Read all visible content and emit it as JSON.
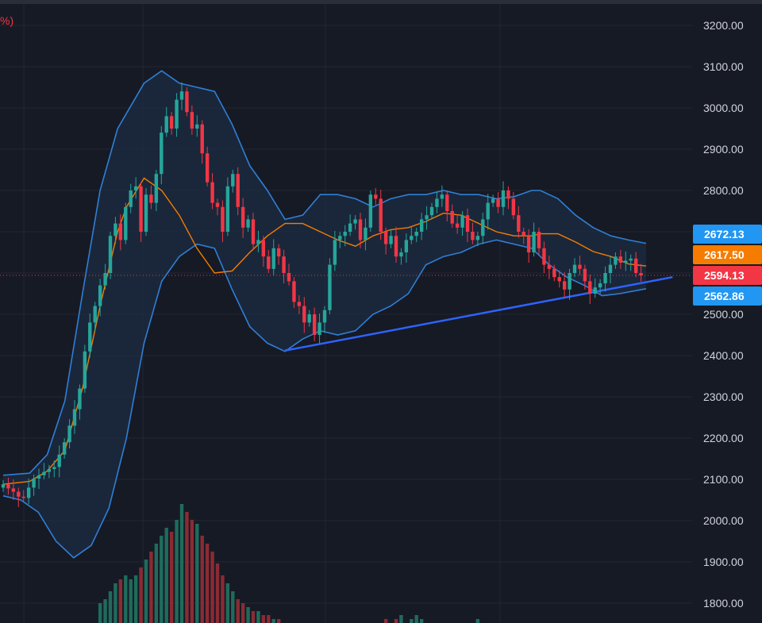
{
  "header": {
    "legend_fragment": "%)"
  },
  "colors": {
    "background": "#161a25",
    "grid": "#232733",
    "up": "#26a69a",
    "down": "#f23645",
    "bb_band": "#2f7fd6",
    "bb_fill": "#1c2a40",
    "bb_basis": "#f57c00",
    "trendline": "#2e63ff",
    "vol_up": "#1f6b5c",
    "vol_down": "#8a2b33",
    "axis_text": "#d1d4dc"
  },
  "chart_data": {
    "type": "candlestick",
    "ylim": [
      1780,
      3240
    ],
    "price_ticks": [
      "3200.00",
      "3100.00",
      "3000.00",
      "2900.00",
      "2800.00",
      "2700.00",
      "2600.00",
      "2500.00",
      "2400.00",
      "2300.00",
      "2200.00",
      "2100.00",
      "2000.00",
      "1900.00",
      "1800.00"
    ],
    "tags": [
      {
        "label": "2672.13",
        "value": 2672.13,
        "color": "#2196f3",
        "name": "upper-band-tag"
      },
      {
        "label": "2617.50",
        "value": 2617.5,
        "color": "#f57c00",
        "name": "basis-tag"
      },
      {
        "label": "2594.13",
        "value": 2594.13,
        "color": "#f23645",
        "name": "last-price-tag"
      },
      {
        "label": "2562.86",
        "value": 2562.86,
        "color": "#2196f3",
        "name": "lower-band-tag"
      }
    ],
    "last_price": 2594.13,
    "closes": [
      2088,
      2078,
      2070,
      2058,
      2055,
      2080,
      2102,
      2110,
      2118,
      2125,
      2130,
      2160,
      2190,
      2230,
      2270,
      2320,
      2410,
      2480,
      2520,
      2570,
      2600,
      2690,
      2720,
      2680,
      2760,
      2800,
      2810,
      2700,
      2790,
      2770,
      2840,
      2940,
      2980,
      2950,
      3020,
      3040,
      2990,
      2950,
      2960,
      2890,
      2820,
      2770,
      2760,
      2700,
      2810,
      2840,
      2760,
      2710,
      2730,
      2670,
      2680,
      2640,
      2610,
      2660,
      2640,
      2600,
      2580,
      2530,
      2520,
      2480,
      2500,
      2450,
      2480,
      2510,
      2620,
      2680,
      2690,
      2700,
      2720,
      2730,
      2680,
      2710,
      2790,
      2780,
      2700,
      2670,
      2690,
      2640,
      2650,
      2680,
      2690,
      2700,
      2730,
      2740,
      2760,
      2780,
      2790,
      2750,
      2720,
      2710,
      2740,
      2700,
      2680,
      2690,
      2730,
      2770,
      2780,
      2760,
      2800,
      2780,
      2740,
      2700,
      2690,
      2650,
      2700,
      2660,
      2620,
      2610,
      2590,
      2580,
      2560,
      2600,
      2620,
      2610,
      2580,
      2550,
      2565,
      2575,
      2600,
      2620,
      2640,
      2625,
      2630,
      2635,
      2600,
      2594
    ],
    "basis": [
      [
        0,
        2088
      ],
      [
        15,
        2095
      ],
      [
        25,
        2120
      ],
      [
        35,
        2170
      ],
      [
        45,
        2320
      ],
      [
        55,
        2520
      ],
      [
        65,
        2700
      ],
      [
        70,
        2760
      ],
      [
        80,
        2830
      ],
      [
        90,
        2800
      ],
      [
        100,
        2740
      ],
      [
        110,
        2660
      ],
      [
        120,
        2600
      ],
      [
        130,
        2605
      ],
      [
        140,
        2650
      ],
      [
        150,
        2690
      ],
      [
        160,
        2720
      ],
      [
        170,
        2720
      ],
      [
        180,
        2700
      ],
      [
        190,
        2680
      ],
      [
        200,
        2665
      ],
      [
        210,
        2690
      ],
      [
        220,
        2705
      ],
      [
        230,
        2710
      ],
      [
        240,
        2725
      ],
      [
        250,
        2745
      ],
      [
        260,
        2740
      ],
      [
        270,
        2720
      ],
      [
        280,
        2700
      ],
      [
        290,
        2690
      ],
      [
        300,
        2690
      ],
      [
        305,
        2695
      ],
      [
        315,
        2695
      ],
      [
        325,
        2675
      ],
      [
        335,
        2652
      ],
      [
        345,
        2640
      ],
      [
        355,
        2622
      ],
      [
        365,
        2617
      ]
    ],
    "upper": [
      [
        0,
        2110
      ],
      [
        15,
        2115
      ],
      [
        25,
        2160
      ],
      [
        35,
        2290
      ],
      [
        45,
        2550
      ],
      [
        55,
        2800
      ],
      [
        65,
        2950
      ],
      [
        80,
        3060
      ],
      [
        90,
        3090
      ],
      [
        100,
        3060
      ],
      [
        110,
        3050
      ],
      [
        120,
        3040
      ],
      [
        130,
        2960
      ],
      [
        140,
        2860
      ],
      [
        150,
        2800
      ],
      [
        160,
        2730
      ],
      [
        170,
        2740
      ],
      [
        180,
        2790
      ],
      [
        190,
        2790
      ],
      [
        200,
        2780
      ],
      [
        210,
        2760
      ],
      [
        220,
        2780
      ],
      [
        230,
        2790
      ],
      [
        240,
        2790
      ],
      [
        250,
        2800
      ],
      [
        260,
        2790
      ],
      [
        270,
        2790
      ],
      [
        280,
        2780
      ],
      [
        290,
        2785
      ],
      [
        300,
        2800
      ],
      [
        305,
        2800
      ],
      [
        315,
        2780
      ],
      [
        325,
        2740
      ],
      [
        335,
        2710
      ],
      [
        345,
        2690
      ],
      [
        355,
        2680
      ],
      [
        365,
        2672
      ]
    ],
    "lower": [
      [
        0,
        2060
      ],
      [
        10,
        2050
      ],
      [
        20,
        2020
      ],
      [
        30,
        1950
      ],
      [
        40,
        1910
      ],
      [
        50,
        1940
      ],
      [
        60,
        2030
      ],
      [
        70,
        2200
      ],
      [
        80,
        2430
      ],
      [
        90,
        2580
      ],
      [
        100,
        2640
      ],
      [
        110,
        2670
      ],
      [
        120,
        2660
      ],
      [
        130,
        2560
      ],
      [
        140,
        2470
      ],
      [
        150,
        2430
      ],
      [
        160,
        2410
      ],
      [
        170,
        2440
      ],
      [
        180,
        2460
      ],
      [
        190,
        2450
      ],
      [
        200,
        2460
      ],
      [
        210,
        2500
      ],
      [
        220,
        2520
      ],
      [
        230,
        2550
      ],
      [
        240,
        2620
      ],
      [
        250,
        2640
      ],
      [
        260,
        2650
      ],
      [
        270,
        2670
      ],
      [
        280,
        2680
      ],
      [
        290,
        2670
      ],
      [
        300,
        2660
      ],
      [
        310,
        2620
      ],
      [
        320,
        2590
      ],
      [
        330,
        2570
      ],
      [
        340,
        2545
      ],
      [
        350,
        2550
      ],
      [
        365,
        2562
      ]
    ],
    "trendline": [
      [
        160,
        2412
      ],
      [
        380,
        2590
      ]
    ],
    "volumes": [
      0,
      0,
      0,
      0,
      0,
      0,
      0,
      0,
      0,
      0,
      0,
      0,
      0,
      0,
      0,
      0,
      0,
      0,
      0,
      5,
      6,
      8,
      10,
      11,
      12,
      11,
      12,
      14,
      16,
      18,
      20,
      22,
      24,
      23,
      26,
      30,
      28,
      26,
      25,
      22,
      20,
      18,
      15,
      12,
      10,
      8,
      6,
      5,
      4,
      3,
      3,
      2,
      2,
      1,
      1,
      0,
      0,
      0,
      0,
      0,
      0,
      0,
      0,
      0,
      0,
      0,
      0,
      0,
      0,
      0,
      0,
      0,
      0,
      0,
      0,
      1,
      0,
      1,
      2,
      0,
      1,
      2,
      1,
      0,
      0,
      0,
      0,
      0,
      0,
      0,
      0,
      0,
      0,
      1,
      0,
      0,
      0,
      0,
      0,
      0,
      0,
      0,
      0,
      0,
      0,
      0,
      0,
      0,
      0,
      0,
      0,
      0,
      0,
      0,
      0,
      0,
      0,
      0,
      0,
      0,
      0,
      0,
      0,
      0,
      0,
      0
    ]
  }
}
